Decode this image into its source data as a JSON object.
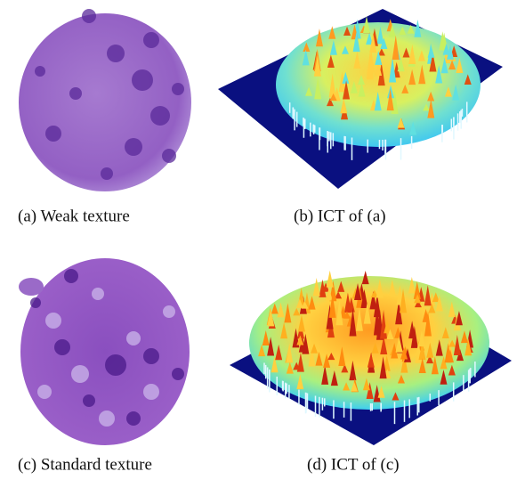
{
  "panels": [
    {
      "caption": "(a) Weak texture"
    },
    {
      "caption": "(b) ICT of (a)"
    },
    {
      "caption": "(c) Standard texture"
    },
    {
      "caption": "(d) ICT of (c)"
    }
  ]
}
